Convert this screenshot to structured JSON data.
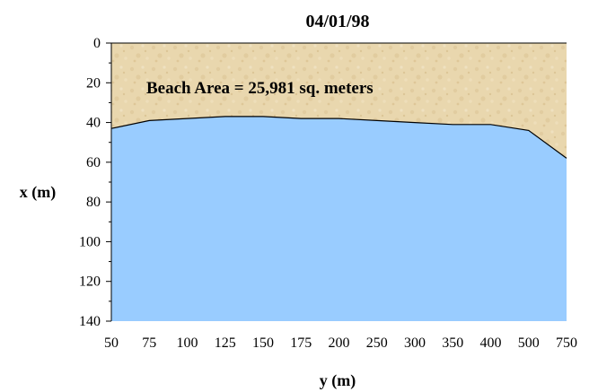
{
  "chart_data": {
    "type": "area",
    "title": "04/01/98",
    "xlabel": "y (m)",
    "ylabel": "x (m)",
    "annotation": "Beach Area = 25,981 sq. meters",
    "categories": [
      "50",
      "75",
      "100",
      "125",
      "150",
      "175",
      "200",
      "250",
      "300",
      "350",
      "400",
      "500",
      "750"
    ],
    "series": [
      {
        "values": [
          43,
          39,
          38,
          37,
          37,
          38,
          38,
          39,
          40,
          41,
          41,
          44,
          58
        ]
      }
    ],
    "ylim": [
      0,
      140
    ],
    "yticks": [
      0,
      20,
      40,
      60,
      80,
      100,
      120,
      140
    ],
    "y_inverted": true,
    "grid": false,
    "colors": {
      "sand": "#e8d6ad",
      "water": "#99ccff",
      "shoreline": "#000000"
    }
  }
}
